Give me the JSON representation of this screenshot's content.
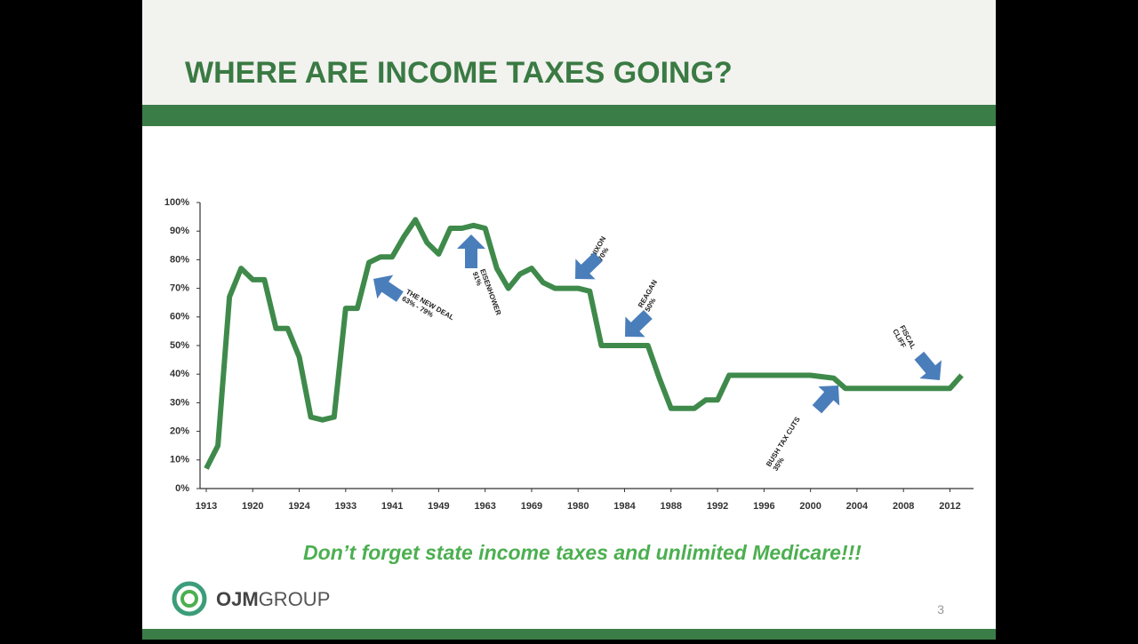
{
  "slide": {
    "title": "WHERE ARE INCOME TAXES GOING?",
    "note": "Don’t forget state income taxes and unlimited Medicare!!!",
    "logo": {
      "bold": "OJM",
      "light": "GROUP"
    },
    "page_number": "3"
  },
  "chart_data": {
    "type": "line",
    "categories": [
      "1913",
      null,
      null,
      null,
      "1920",
      null,
      null,
      null,
      "1924",
      null,
      null,
      null,
      "1933",
      null,
      null,
      null,
      "1941",
      null,
      null,
      null,
      "1949",
      null,
      null,
      null,
      "1963",
      null,
      null,
      null,
      "1969",
      null,
      null,
      null,
      "1980",
      null,
      null,
      null,
      "1984",
      null,
      null,
      null,
      "1988",
      null,
      null,
      null,
      "1992",
      null,
      null,
      null,
      "1996",
      null,
      null,
      null,
      "2000",
      null,
      null,
      null,
      "2004",
      null,
      null,
      null,
      "2008",
      null,
      null,
      null,
      "2012",
      null
    ],
    "values": [
      7,
      15,
      67,
      77,
      73,
      73,
      56,
      56,
      46,
      25,
      24,
      25,
      63,
      63,
      79,
      81,
      81,
      88,
      94,
      86,
      82,
      91,
      91,
      92,
      91,
      77,
      70,
      75,
      77,
      72,
      70,
      70,
      70,
      69,
      50,
      50,
      50,
      50,
      50,
      38.5,
      28,
      28,
      28,
      31,
      31,
      39.6,
      39.6,
      39.6,
      39.6,
      39.6,
      39.6,
      39.6,
      39.6,
      39.1,
      38.6,
      35,
      35,
      35,
      35,
      35,
      35,
      35,
      35,
      35,
      35,
      39.6
    ],
    "color": "#3f8a4b",
    "ylim": [
      0,
      100
    ],
    "yticks": [
      {
        "value": 0,
        "label": "0%"
      },
      {
        "value": 10,
        "label": "10%"
      },
      {
        "value": 20,
        "label": "20%"
      },
      {
        "value": 30,
        "label": "30%"
      },
      {
        "value": 40,
        "label": "40%"
      },
      {
        "value": 50,
        "label": "50%"
      },
      {
        "value": 60,
        "label": "60%"
      },
      {
        "value": 70,
        "label": "70%"
      },
      {
        "value": 80,
        "label": "80%"
      },
      {
        "value": 90,
        "label": "90%"
      },
      {
        "value": 100,
        "label": "100%"
      }
    ],
    "annotations": [
      {
        "lines": [
          "THE NEW DEAL",
          "63% - 79%"
        ]
      },
      {
        "lines": [
          "EISENHOWER",
          "91%"
        ]
      },
      {
        "lines": [
          "NIXON",
          "70%"
        ]
      },
      {
        "lines": [
          "REAGAN",
          "50%"
        ]
      },
      {
        "lines": [
          "FISCAL",
          "CLIFF"
        ]
      },
      {
        "lines": [
          "BUSH TAX CUTS",
          "35%"
        ]
      }
    ]
  }
}
